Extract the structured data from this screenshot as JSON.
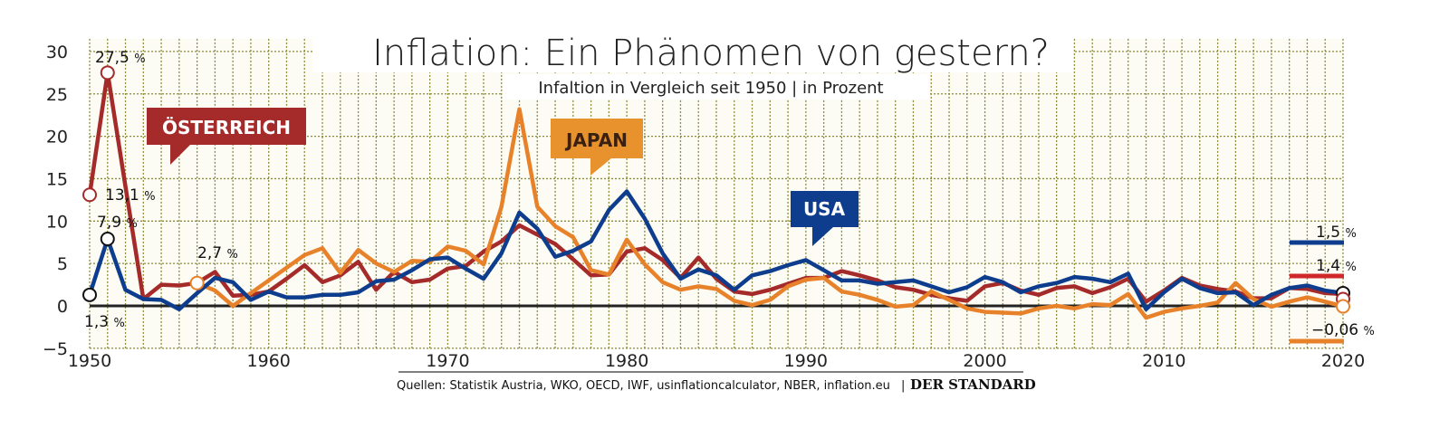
{
  "chart_data": {
    "type": "line",
    "title": "Inflation: Ein Phänomen von gestern?",
    "subtitle": "Infaltion in Vergleich seit 1950 | in Prozent",
    "source": "Quellen: Statistik Austria, WKO, OECD, IWF, usinflationcalculator, NBER, inflation.eu",
    "publisher": "DER STANDARD",
    "xlim": [
      1950,
      2020
    ],
    "ylim": [
      -5,
      30
    ],
    "x_ticks": [
      "1950",
      "1960",
      "1970",
      "1980",
      "1990",
      "2000",
      "2010",
      "2020"
    ],
    "y_ticks": [
      "30",
      "25",
      "20",
      "15",
      "10",
      "5",
      "0",
      "−5"
    ],
    "grid": true,
    "series": [
      {
        "name": "ÖSTERREICH",
        "color": "#a52a2a",
        "start": 1950,
        "values": [
          13.1,
          27.5,
          14.1,
          0.8,
          2.5,
          2.4,
          2.7,
          4.0,
          1.2,
          1.3,
          1.7,
          3.2,
          4.8,
          2.8,
          3.6,
          5.2,
          1.9,
          4.0,
          2.8,
          3.1,
          4.4,
          4.7,
          6.4,
          7.6,
          9.5,
          8.4,
          7.3,
          5.5,
          3.6,
          3.7,
          6.4,
          6.8,
          5.4,
          3.3,
          5.7,
          3.2,
          1.7,
          1.4,
          1.9,
          2.6,
          3.3,
          3.3,
          4.1,
          3.6,
          3.0,
          2.2,
          1.9,
          1.3,
          0.9,
          0.6,
          2.3,
          2.7,
          1.8,
          1.3,
          2.1,
          2.3,
          1.5,
          2.2,
          3.2,
          0.5,
          1.8,
          3.3,
          2.4,
          2.0,
          1.7,
          0.9,
          0.9,
          2.1,
          2.0,
          1.5,
          1.4
        ]
      },
      {
        "name": "JAPAN",
        "color": "#e8822a",
        "start": 1956,
        "values": [
          2.7,
          1.8,
          0.0,
          1.5,
          3.0,
          4.5,
          6.0,
          6.8,
          3.9,
          6.6,
          5.0,
          4.0,
          5.3,
          5.2,
          7.0,
          6.5,
          4.9,
          11.7,
          23.2,
          11.7,
          9.4,
          8.1,
          4.2,
          3.7,
          7.8,
          4.9,
          2.8,
          1.9,
          2.3,
          2.0,
          0.6,
          0.1,
          0.7,
          2.3,
          3.1,
          3.3,
          1.7,
          1.3,
          0.7,
          -0.1,
          0.1,
          1.7,
          0.7,
          -0.3,
          -0.7,
          -0.8,
          -0.9,
          -0.3,
          0.0,
          -0.3,
          0.2,
          0.1,
          1.4,
          -1.4,
          -0.7,
          -0.3,
          0.0,
          0.4,
          2.7,
          0.8,
          -0.1,
          0.5,
          1.0,
          0.5,
          -0.06
        ]
      },
      {
        "name": "USA",
        "color": "#0d3d8c",
        "start": 1950,
        "values": [
          1.3,
          7.9,
          1.9,
          0.8,
          0.7,
          -0.4,
          1.5,
          3.3,
          2.8,
          0.7,
          1.7,
          1.0,
          1.0,
          1.3,
          1.3,
          1.6,
          2.9,
          3.1,
          4.2,
          5.5,
          5.7,
          4.4,
          3.2,
          6.2,
          11.0,
          9.1,
          5.8,
          6.5,
          7.6,
          11.3,
          13.5,
          10.3,
          6.2,
          3.2,
          4.3,
          3.6,
          1.9,
          3.6,
          4.1,
          4.8,
          5.4,
          4.2,
          3.0,
          3.0,
          2.6,
          2.8,
          3.0,
          2.3,
          1.6,
          2.2,
          3.4,
          2.8,
          1.6,
          2.3,
          2.7,
          3.4,
          3.2,
          2.8,
          3.8,
          -0.4,
          1.6,
          3.2,
          2.1,
          1.5,
          1.6,
          0.1,
          1.3,
          2.1,
          2.4,
          1.8,
          1.5
        ]
      }
    ],
    "annotations": {
      "aut_1950": "13,1",
      "aut_1951": "27,5",
      "usa_1950": "1,3",
      "usa_1951": "7,9",
      "jpn_1956": "2,7",
      "usa_2020": "1,5",
      "aut_2020": "1,4",
      "jpn_2020": "−0,06",
      "pct": "%"
    }
  }
}
